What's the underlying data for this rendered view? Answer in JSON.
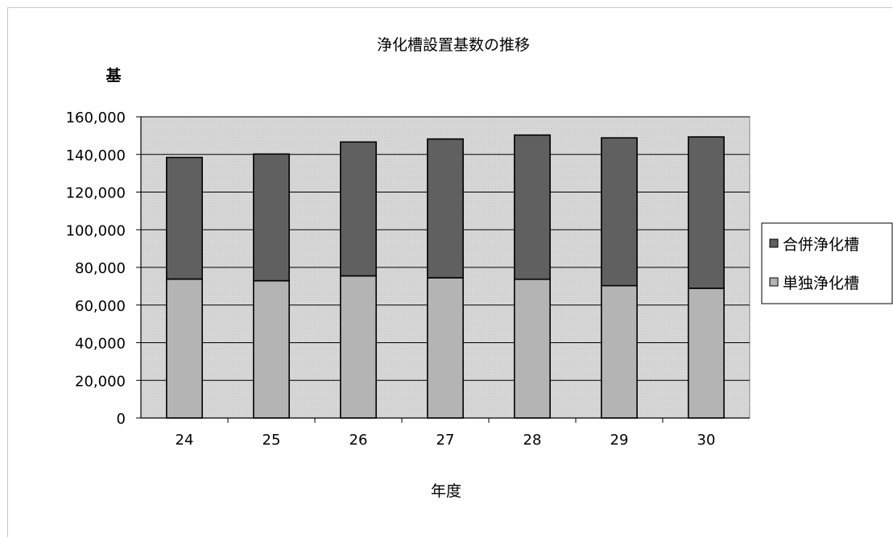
{
  "chart_data": {
    "type": "bar",
    "stacked": true,
    "title": "浄化槽設置基数の推移",
    "xlabel": "年度",
    "ylabel": "基",
    "categories": [
      "24",
      "25",
      "26",
      "27",
      "28",
      "29",
      "30"
    ],
    "series": [
      {
        "name": "単独浄化槽",
        "values": [
          73800,
          72900,
          75500,
          74500,
          73700,
          70300,
          68900
        ],
        "color": "#b4b4b4"
      },
      {
        "name": "合併浄化槽",
        "values": [
          64600,
          67300,
          71100,
          73700,
          76600,
          78500,
          80400
        ],
        "color": "#606060"
      }
    ],
    "ylim": [
      0,
      160000
    ],
    "yticks": [
      "0",
      "20,000",
      "40,000",
      "60,000",
      "80,000",
      "100,000",
      "120,000",
      "140,000",
      "160,000"
    ],
    "grid": true,
    "plot_background": "#d7d7d7",
    "legend_position": "right"
  }
}
